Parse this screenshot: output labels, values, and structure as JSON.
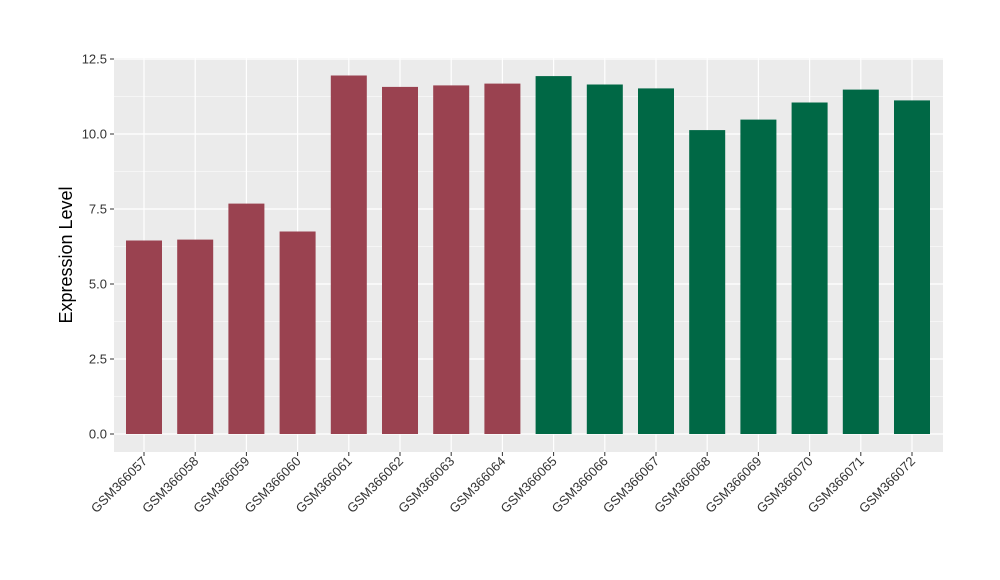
{
  "chart_data": {
    "type": "bar",
    "title": "",
    "xlabel": "",
    "ylabel": "Expression Level",
    "ylim": [
      0,
      12.5
    ],
    "yticks": [
      0,
      2.5,
      5,
      7.5,
      10,
      12.5
    ],
    "ytick_labels": [
      "0.0",
      "2.5",
      "5.0",
      "7.5",
      "10.0",
      "12.5"
    ],
    "grid": true,
    "legend": "none",
    "categories": [
      "GSM366057",
      "GSM366058",
      "GSM366059",
      "GSM366060",
      "GSM366061",
      "GSM366062",
      "GSM366063",
      "GSM366064",
      "GSM366065",
      "GSM366066",
      "GSM366067",
      "GSM366068",
      "GSM366069",
      "GSM366070",
      "GSM366071",
      "GSM366072"
    ],
    "values": [
      6.45,
      6.48,
      7.68,
      6.75,
      11.95,
      11.57,
      11.62,
      11.68,
      11.93,
      11.65,
      11.52,
      10.13,
      10.48,
      11.05,
      11.48,
      11.12
    ],
    "group_colors": {
      "group1": "#9A4250",
      "group2": "#006845"
    },
    "bar_groups": [
      "group1",
      "group1",
      "group1",
      "group1",
      "group1",
      "group1",
      "group1",
      "group1",
      "group2",
      "group2",
      "group2",
      "group2",
      "group2",
      "group2",
      "group2",
      "group2"
    ],
    "panel_background": "#EBEBEB",
    "grid_color": "#FFFFFF"
  }
}
